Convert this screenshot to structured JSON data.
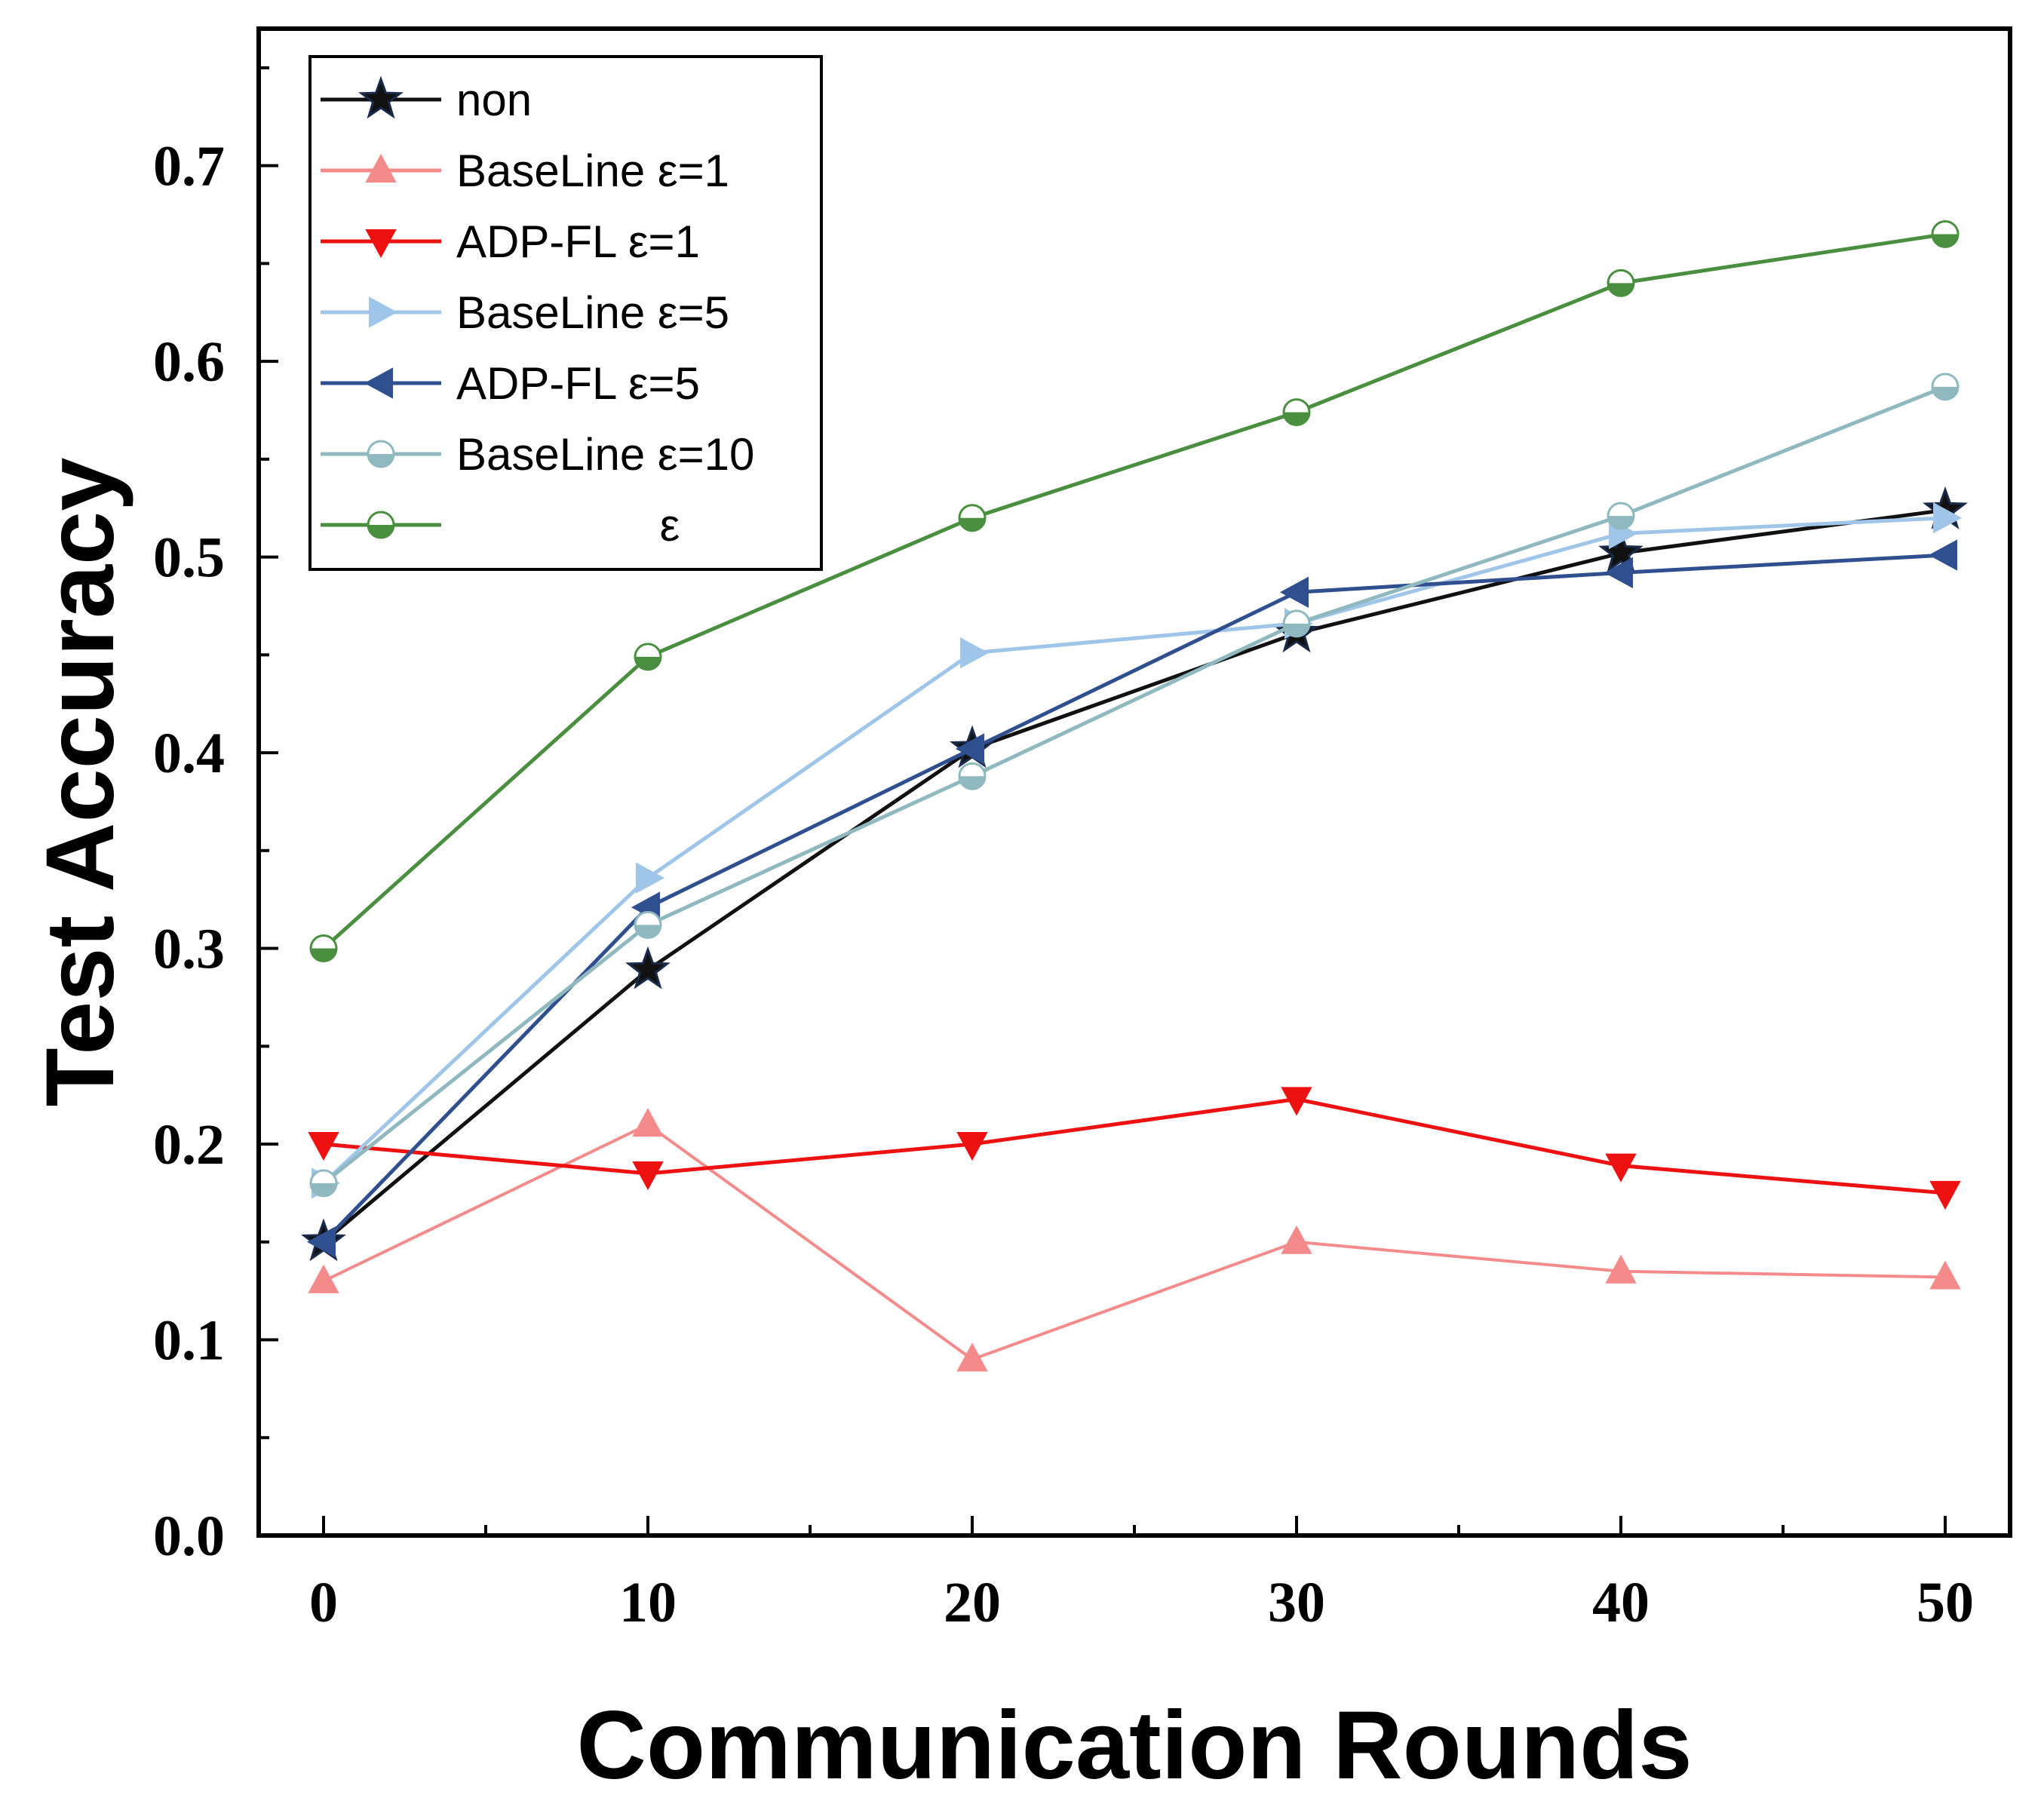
{
  "chart_data": {
    "type": "line",
    "xlabel": "Communication Rounds",
    "ylabel": "Test Accuracy",
    "x": [
      0,
      10,
      20,
      30,
      40,
      50
    ],
    "xlim": [
      -2,
      52
    ],
    "ylim": [
      0.0,
      0.77
    ],
    "xticks": [
      "0",
      "10",
      "20",
      "30",
      "40",
      "50"
    ],
    "yticks": [
      "0.0",
      "0.1",
      "0.2",
      "0.3",
      "0.4",
      "0.5",
      "0.6",
      "0.7"
    ],
    "grid": false,
    "legend_position": "top-left",
    "series": [
      {
        "name": "non",
        "color": "#111111",
        "marker": "star",
        "values": [
          0.15,
          0.289,
          0.402,
          0.461,
          0.502,
          0.524
        ]
      },
      {
        "name": "BaseLine ε=1",
        "color": "#f58a8a",
        "marker": "triangle-up",
        "values": [
          0.13,
          0.21,
          0.09,
          0.15,
          0.135,
          0.132
        ]
      },
      {
        "name": "ADP-FL ε=1",
        "color": "#ee1111",
        "marker": "triangle-down",
        "values": [
          0.2,
          0.185,
          0.2,
          0.223,
          0.189,
          0.175
        ]
      },
      {
        "name": "BaseLine ε=5",
        "color": "#9fc5e8",
        "marker": "triangle-right",
        "values": [
          0.18,
          0.336,
          0.451,
          0.466,
          0.512,
          0.52
        ]
      },
      {
        "name": "ADP-FL ε=5",
        "color": "#2f4f8f",
        "marker": "triangle-left",
        "values": [
          0.15,
          0.321,
          0.402,
          0.482,
          0.492,
          0.501
        ]
      },
      {
        "name": "BaseLine ε=10",
        "color": "#8fb8bf",
        "marker": "circle-half",
        "values": [
          0.18,
          0.312,
          0.388,
          0.466,
          0.521,
          0.587
        ]
      },
      {
        "name": "ε",
        "color": "#4a8f3f",
        "marker": "circle-half",
        "values": [
          0.3,
          0.449,
          0.52,
          0.574,
          0.64,
          0.665
        ]
      }
    ]
  }
}
